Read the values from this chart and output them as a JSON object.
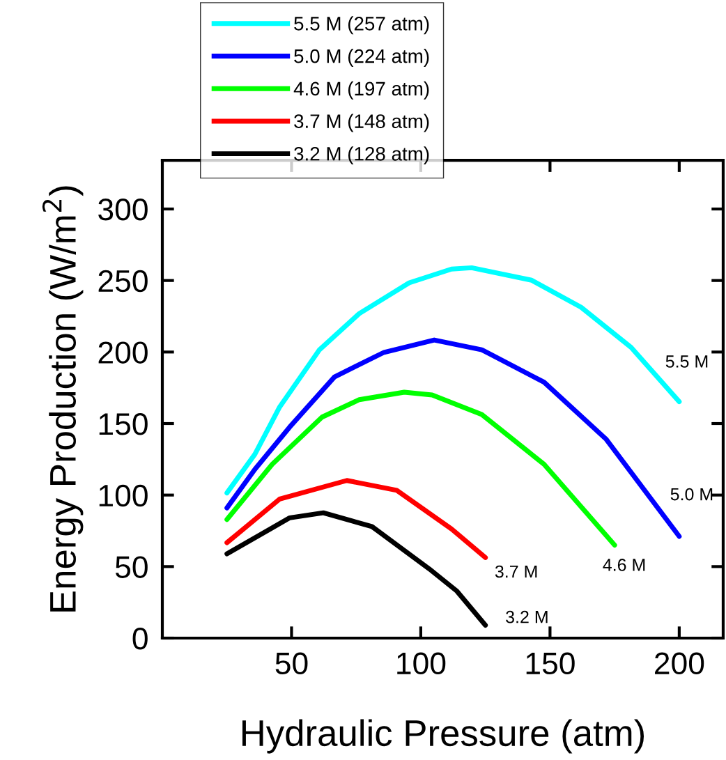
{
  "chart_data": {
    "type": "line",
    "xlabel": "Hydraulic Pressure (atm)",
    "ylabel": "Energy Production (W/m$^{2}$)",
    "xlim": [
      0,
      217
    ],
    "ylim": [
      0,
      334
    ],
    "xticks": [
      50,
      100,
      150,
      200
    ],
    "yticks": [
      0,
      50,
      100,
      150,
      200,
      250,
      300
    ],
    "grid": false,
    "legend": "top left",
    "marker": "none",
    "line_style": "solid",
    "series": [
      {
        "name": "5.5 M (257 atm)",
        "color": "#00ffff",
        "x": [
          25,
          35.8,
          45.4,
          60.8,
          76.2,
          95.5,
          111.9,
          119.7,
          142.9,
          162,
          181.4,
          200
        ],
        "values": [
          101.5,
          128.5,
          161.6,
          201.6,
          226.9,
          248.4,
          258,
          258.9,
          250.2,
          231.3,
          203.2,
          165.3
        ]
      },
      {
        "name": "5.0 M (224 atm)",
        "color": "#0000ff",
        "x": [
          25,
          35.8,
          49.3,
          66.6,
          85.8,
          105.2,
          123.6,
          147.7,
          171.8,
          200
        ],
        "values": [
          91,
          118,
          147.6,
          182.6,
          199.8,
          208.4,
          201.6,
          178.9,
          138.9,
          71.1
        ]
      },
      {
        "name": "4.6 M (197 atm)",
        "color": "#00ff00",
        "x": [
          25,
          42.5,
          61.8,
          76.2,
          93.6,
          104.4,
          123.6,
          147.7,
          175
        ],
        "values": [
          82.9,
          121.5,
          154.5,
          166.7,
          171.9,
          170,
          156.3,
          121.5,
          65
        ]
      },
      {
        "name": "3.7 M (148 atm)",
        "color": "#ff0000",
        "x": [
          25,
          45.4,
          71.4,
          90.7,
          111.9,
          125
        ],
        "values": [
          66.7,
          97.2,
          110.2,
          103.3,
          76.3,
          56.3
        ]
      },
      {
        "name": "3.2 M (128 atm)",
        "color": "#000000",
        "x": [
          25,
          49.3,
          62.3,
          81.1,
          103.2,
          114,
          125
        ],
        "values": [
          58.9,
          84.1,
          87.6,
          78,
          48.5,
          32.8,
          9
        ]
      }
    ],
    "annotations": [
      "5.5 M",
      "5.0 M",
      "4.6 M",
      "3.7 M",
      "3.2 M"
    ]
  }
}
